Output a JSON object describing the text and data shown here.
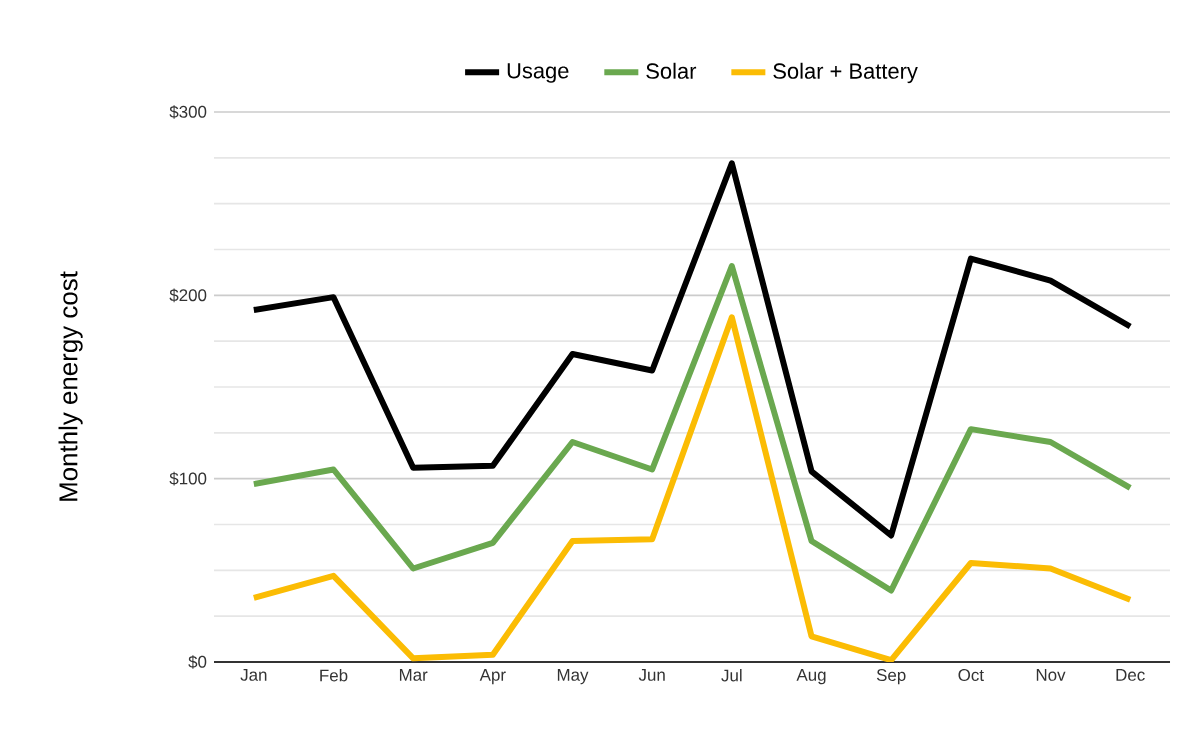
{
  "chart_data": {
    "type": "line",
    "ylabel": "Monthly energy cost",
    "categories": [
      "Jan",
      "Feb",
      "Mar",
      "Apr",
      "May",
      "Jun",
      "Jul",
      "Aug",
      "Sep",
      "Oct",
      "Nov",
      "Dec"
    ],
    "series": [
      {
        "name": "Usage",
        "color": "#000000",
        "values": [
          192,
          199,
          106,
          107,
          168,
          159,
          272,
          104,
          69,
          220,
          208,
          183
        ]
      },
      {
        "name": "Solar",
        "color": "#6aa84f",
        "values": [
          97,
          105,
          51,
          65,
          120,
          105,
          216,
          66,
          39,
          127,
          120,
          95
        ]
      },
      {
        "name": "Solar + Battery",
        "color": "#fbbc04",
        "values": [
          35,
          47,
          2,
          4,
          66,
          67,
          188,
          14,
          1,
          54,
          51,
          34
        ]
      }
    ],
    "ylim": [
      0,
      300
    ],
    "yticks": [
      {
        "value": 0,
        "label": "$0"
      },
      {
        "value": 100,
        "label": "$100"
      },
      {
        "value": 200,
        "label": "$200"
      },
      {
        "value": 300,
        "label": "$300"
      }
    ],
    "grid": "y",
    "legend": "top",
    "marker": "none",
    "line_style": "solid"
  }
}
